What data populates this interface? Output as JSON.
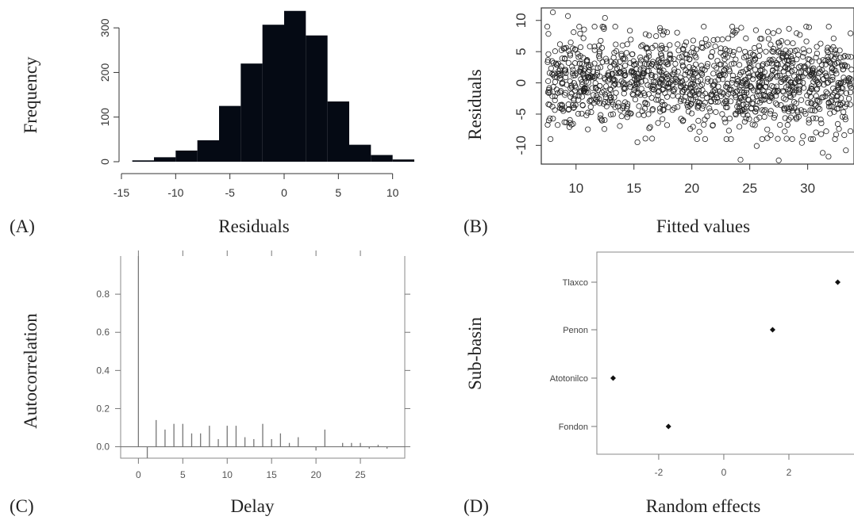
{
  "chart_data": [
    {
      "panel_label": "(A)",
      "type": "bar",
      "subtype": "histogram",
      "xlabel": "Residuals",
      "ylabel": "Frequency",
      "xlim": [
        -15,
        12
      ],
      "ylim": [
        0,
        350
      ],
      "x_ticks": [
        -15,
        -10,
        -5,
        0,
        5,
        10
      ],
      "y_ticks": [
        0,
        100,
        200,
        300
      ],
      "bins": [
        {
          "from": -14,
          "to": -12,
          "value": 3
        },
        {
          "from": -12,
          "to": -10,
          "value": 10
        },
        {
          "from": -10,
          "to": -8,
          "value": 25
        },
        {
          "from": -8,
          "to": -6,
          "value": 48
        },
        {
          "from": -6,
          "to": -4,
          "value": 125
        },
        {
          "from": -4,
          "to": -2,
          "value": 220
        },
        {
          "from": -2,
          "to": 0,
          "value": 307
        },
        {
          "from": 0,
          "to": 2,
          "value": 338
        },
        {
          "from": 2,
          "to": 4,
          "value": 283
        },
        {
          "from": 4,
          "to": 6,
          "value": 135
        },
        {
          "from": 6,
          "to": 8,
          "value": 38
        },
        {
          "from": 8,
          "to": 10,
          "value": 15
        },
        {
          "from": 10,
          "to": 12,
          "value": 5
        }
      ],
      "bar_color": "#050a14"
    },
    {
      "panel_label": "(B)",
      "type": "scatter",
      "xlabel": "Fitted values",
      "ylabel": "Residuals",
      "xlim": [
        7,
        34
      ],
      "ylim": [
        -13,
        12
      ],
      "x_ticks": [
        10,
        15,
        20,
        25,
        30
      ],
      "y_ticks": [
        -10,
        -5,
        0,
        5,
        10
      ],
      "point_style": "open circle",
      "n_points": 1300,
      "x_range_of_points": [
        7.5,
        33.8
      ],
      "residual_spread_sd": 3.7,
      "extreme_points": [
        {
          "x": 8.0,
          "y": 11.3
        },
        {
          "x": 9.3,
          "y": 10.7
        },
        {
          "x": 12.5,
          "y": 10.4
        },
        {
          "x": 11.6,
          "y": 9.0
        },
        {
          "x": 27.5,
          "y": 8.3
        },
        {
          "x": 24.2,
          "y": -12.3
        },
        {
          "x": 27.5,
          "y": -12.4
        },
        {
          "x": 31.3,
          "y": -11.2
        },
        {
          "x": 31.8,
          "y": -11.8
        },
        {
          "x": 33.3,
          "y": -10.8
        },
        {
          "x": 25.6,
          "y": -10.1
        },
        {
          "x": 29.5,
          "y": -9.6
        },
        {
          "x": 15.3,
          "y": -9.5
        },
        {
          "x": 9.0,
          "y": -6.3
        }
      ]
    },
    {
      "panel_label": "(C)",
      "type": "bar",
      "subtype": "acf",
      "xlabel": "Delay",
      "ylabel": "Autocorrelation",
      "xlim": [
        -2,
        30
      ],
      "ylim": [
        -0.06,
        1.0
      ],
      "x_ticks": [
        0,
        5,
        10,
        15,
        20,
        25
      ],
      "y_ticks": [
        0.0,
        0.2,
        0.4,
        0.6,
        0.8
      ],
      "y_tick_labels": [
        "0.0",
        "0.2",
        "0.4",
        "0.6",
        "0.8"
      ],
      "lags": [
        0,
        1,
        2,
        3,
        4,
        5,
        6,
        7,
        8,
        9,
        10,
        11,
        12,
        13,
        14,
        15,
        16,
        17,
        18,
        19,
        20,
        21,
        22,
        23,
        24,
        25,
        26,
        27,
        28
      ],
      "values": [
        1.0,
        -0.06,
        0.14,
        0.09,
        0.12,
        0.12,
        0.07,
        0.07,
        0.11,
        0.04,
        0.11,
        0.11,
        0.05,
        0.04,
        0.12,
        0.04,
        0.07,
        0.02,
        0.05,
        0.0,
        -0.02,
        0.09,
        0.0,
        0.02,
        0.02,
        0.02,
        -0.01,
        0.01,
        -0.01
      ]
    },
    {
      "panel_label": "(D)",
      "type": "scatter",
      "subtype": "dotplot",
      "xlabel": "Random effects",
      "ylabel": "Sub-basin",
      "xlim": [
        -3.9,
        4.0
      ],
      "x_ticks": [
        -2,
        0,
        2
      ],
      "categories": [
        "Fondon",
        "Atotonilco",
        "Penon",
        "Tlaxco"
      ],
      "values": [
        -1.7,
        -3.4,
        1.5,
        3.5
      ]
    }
  ]
}
